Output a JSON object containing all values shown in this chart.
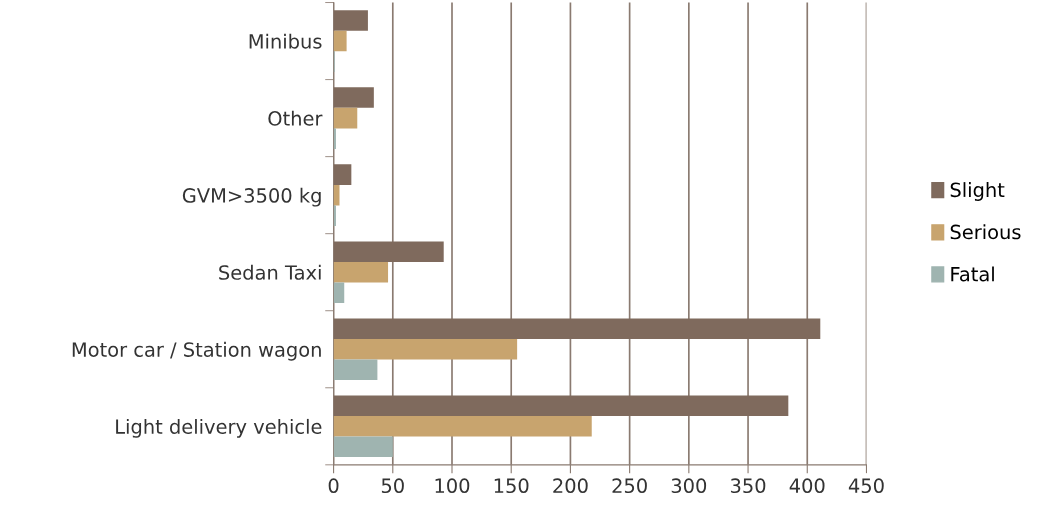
{
  "chart_data": {
    "type": "bar",
    "orientation": "horizontal",
    "categories": [
      "Minibus",
      "Other",
      "GVM>3500 kg",
      "Sedan Taxi",
      "Motor car / Station wagon",
      "Light delivery vehicle"
    ],
    "series": [
      {
        "name": "Slight",
        "color": "#7f6a5d",
        "values": [
          29,
          34,
          15,
          93,
          411,
          384
        ]
      },
      {
        "name": "Serious",
        "color": "#c8a46e",
        "values": [
          11,
          20,
          5,
          46,
          155,
          218
        ]
      },
      {
        "name": "Fatal",
        "color": "#9fb4b0",
        "values": [
          1,
          2,
          2,
          9,
          37,
          50
        ]
      }
    ],
    "xlim": [
      0,
      450
    ],
    "xticks": [
      0,
      50,
      100,
      150,
      200,
      250,
      300,
      350,
      400,
      450
    ],
    "grid": "x",
    "legend": "right"
  }
}
